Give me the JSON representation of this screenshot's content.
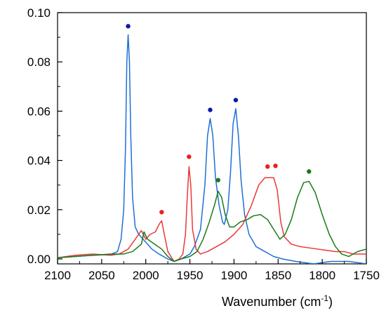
{
  "chart_data": {
    "type": "line",
    "xlabel": "Wavenumber (cm",
    "xlabel_sup": "-1",
    "xlabel_close": ")",
    "ylabel": "",
    "xlim": [
      2100,
      1750
    ],
    "ylim": [
      -0.002,
      0.1
    ],
    "x_reversed": true,
    "grid": false,
    "x_ticks": [
      2100,
      2050,
      2000,
      1950,
      1900,
      1850,
      1800,
      1750
    ],
    "x_tick_labels": [
      "2100",
      "2050",
      "2000",
      "1950",
      "1900",
      "1850",
      "1800",
      "1750"
    ],
    "y_ticks": [
      0.0,
      0.02,
      0.04,
      0.06,
      0.08,
      0.1
    ],
    "y_tick_labels": [
      "0.00",
      "0.02",
      "0.04",
      "0.06",
      "0.08",
      "0.10"
    ],
    "series": [
      {
        "color": "#1f6fd6",
        "points": [
          [
            2100,
            0.0005
          ],
          [
            2080,
            0.001
          ],
          [
            2060,
            0.0015
          ],
          [
            2040,
            0.0018
          ],
          [
            2032,
            0.003
          ],
          [
            2028,
            0.008
          ],
          [
            2025,
            0.02
          ],
          [
            2023,
            0.045
          ],
          [
            2021.5,
            0.08
          ],
          [
            2020,
            0.091
          ],
          [
            2018.5,
            0.08
          ],
          [
            2017,
            0.05
          ],
          [
            2015,
            0.025
          ],
          [
            2012,
            0.013
          ],
          [
            2008,
            0.01
          ],
          [
            2003,
            0.008
          ],
          [
            1998,
            0.006
          ],
          [
            1993,
            0.004
          ],
          [
            1985,
            0.002
          ],
          [
            1975,
            0.0
          ],
          [
            1968,
            -0.001
          ],
          [
            1960,
            0.0
          ],
          [
            1950,
            0.002
          ],
          [
            1945,
            0.005
          ],
          [
            1938,
            0.012
          ],
          [
            1933,
            0.03
          ],
          [
            1930,
            0.05
          ],
          [
            1927,
            0.057
          ],
          [
            1924,
            0.05
          ],
          [
            1921,
            0.033
          ],
          [
            1917,
            0.022
          ],
          [
            1913,
            0.015
          ],
          [
            1911,
            0.014
          ],
          [
            1907,
            0.02
          ],
          [
            1904,
            0.035
          ],
          [
            1901,
            0.055
          ],
          [
            1898,
            0.061
          ],
          [
            1895,
            0.05
          ],
          [
            1892,
            0.032
          ],
          [
            1888,
            0.018
          ],
          [
            1883,
            0.01
          ],
          [
            1875,
            0.005
          ],
          [
            1865,
            0.003
          ],
          [
            1855,
            0.001
          ],
          [
            1845,
            0.0
          ],
          [
            1830,
            -0.001
          ],
          [
            1810,
            -0.002
          ],
          [
            1790,
            -0.001
          ],
          [
            1770,
            -0.001
          ],
          [
            1750,
            -0.002
          ]
        ]
      },
      {
        "color": "#e8393a",
        "points": [
          [
            2100,
            0.0005
          ],
          [
            2080,
            0.0015
          ],
          [
            2060,
            0.002
          ],
          [
            2040,
            0.0015
          ],
          [
            2030,
            0.002
          ],
          [
            2020,
            0.004
          ],
          [
            2012,
            0.008
          ],
          [
            2005,
            0.0115
          ],
          [
            2000,
            0.008
          ],
          [
            1995,
            0.01
          ],
          [
            1989,
            0.011
          ],
          [
            1985,
            0.014
          ],
          [
            1982,
            0.0155
          ],
          [
            1979,
            0.01
          ],
          [
            1975,
            0.003
          ],
          [
            1968,
            -0.001
          ],
          [
            1962,
            0.0
          ],
          [
            1958,
            0.002
          ],
          [
            1955,
            0.01
          ],
          [
            1953,
            0.025
          ],
          [
            1951,
            0.0375
          ],
          [
            1949,
            0.03
          ],
          [
            1947,
            0.012
          ],
          [
            1943,
            0.004
          ],
          [
            1938,
            0.002
          ],
          [
            1930,
            0.003
          ],
          [
            1920,
            0.005
          ],
          [
            1910,
            0.007
          ],
          [
            1900,
            0.01
          ],
          [
            1890,
            0.014
          ],
          [
            1880,
            0.022
          ],
          [
            1872,
            0.03
          ],
          [
            1865,
            0.033
          ],
          [
            1860,
            0.033
          ],
          [
            1855,
            0.033
          ],
          [
            1851,
            0.028
          ],
          [
            1847,
            0.015
          ],
          [
            1843,
            0.009
          ],
          [
            1835,
            0.006
          ],
          [
            1825,
            0.005
          ],
          [
            1815,
            0.0045
          ],
          [
            1805,
            0.004
          ],
          [
            1795,
            0.0035
          ],
          [
            1785,
            0.003
          ],
          [
            1775,
            0.003
          ],
          [
            1765,
            0.002
          ],
          [
            1755,
            0.002
          ],
          [
            1750,
            0.002
          ]
        ]
      },
      {
        "color": "#1a7a1a",
        "points": [
          [
            2100,
            0.0005
          ],
          [
            2080,
            0.001
          ],
          [
            2060,
            0.0015
          ],
          [
            2040,
            0.002
          ],
          [
            2025,
            0.002
          ],
          [
            2015,
            0.003
          ],
          [
            2005,
            0.006
          ],
          [
            2002,
            0.011
          ],
          [
            1998,
            0.008
          ],
          [
            1990,
            0.006
          ],
          [
            1982,
            0.004
          ],
          [
            1975,
            0.001
          ],
          [
            1968,
            -0.001
          ],
          [
            1960,
            0.0
          ],
          [
            1950,
            0.001
          ],
          [
            1942,
            0.003
          ],
          [
            1935,
            0.008
          ],
          [
            1928,
            0.015
          ],
          [
            1922,
            0.022
          ],
          [
            1918,
            0.0275
          ],
          [
            1914,
            0.025
          ],
          [
            1910,
            0.018
          ],
          [
            1905,
            0.013
          ],
          [
            1900,
            0.013
          ],
          [
            1893,
            0.015
          ],
          [
            1885,
            0.016
          ],
          [
            1878,
            0.0175
          ],
          [
            1870,
            0.018
          ],
          [
            1862,
            0.016
          ],
          [
            1855,
            0.012
          ],
          [
            1848,
            0.008
          ],
          [
            1842,
            0.01
          ],
          [
            1835,
            0.016
          ],
          [
            1828,
            0.025
          ],
          [
            1821,
            0.031
          ],
          [
            1815,
            0.0315
          ],
          [
            1808,
            0.027
          ],
          [
            1800,
            0.018
          ],
          [
            1792,
            0.01
          ],
          [
            1785,
            0.005
          ],
          [
            1778,
            0.002
          ],
          [
            1770,
            0.001
          ],
          [
            1760,
            0.003
          ],
          [
            1750,
            0.004
          ]
        ]
      }
    ],
    "markers": [
      {
        "x": 2020,
        "y": 0.0945,
        "color": "#0a1aa8"
      },
      {
        "x": 1927,
        "y": 0.0605,
        "color": "#0a1aa8"
      },
      {
        "x": 1898,
        "y": 0.0645,
        "color": "#0a1aa8"
      },
      {
        "x": 1982,
        "y": 0.019,
        "color": "#e8201e"
      },
      {
        "x": 1951,
        "y": 0.0415,
        "color": "#e8201e"
      },
      {
        "x": 1862,
        "y": 0.0375,
        "color": "#e8201e"
      },
      {
        "x": 1853,
        "y": 0.0378,
        "color": "#e8201e"
      },
      {
        "x": 1918,
        "y": 0.032,
        "color": "#1a7a1a"
      },
      {
        "x": 1815,
        "y": 0.0355,
        "color": "#1a7a1a"
      }
    ]
  }
}
